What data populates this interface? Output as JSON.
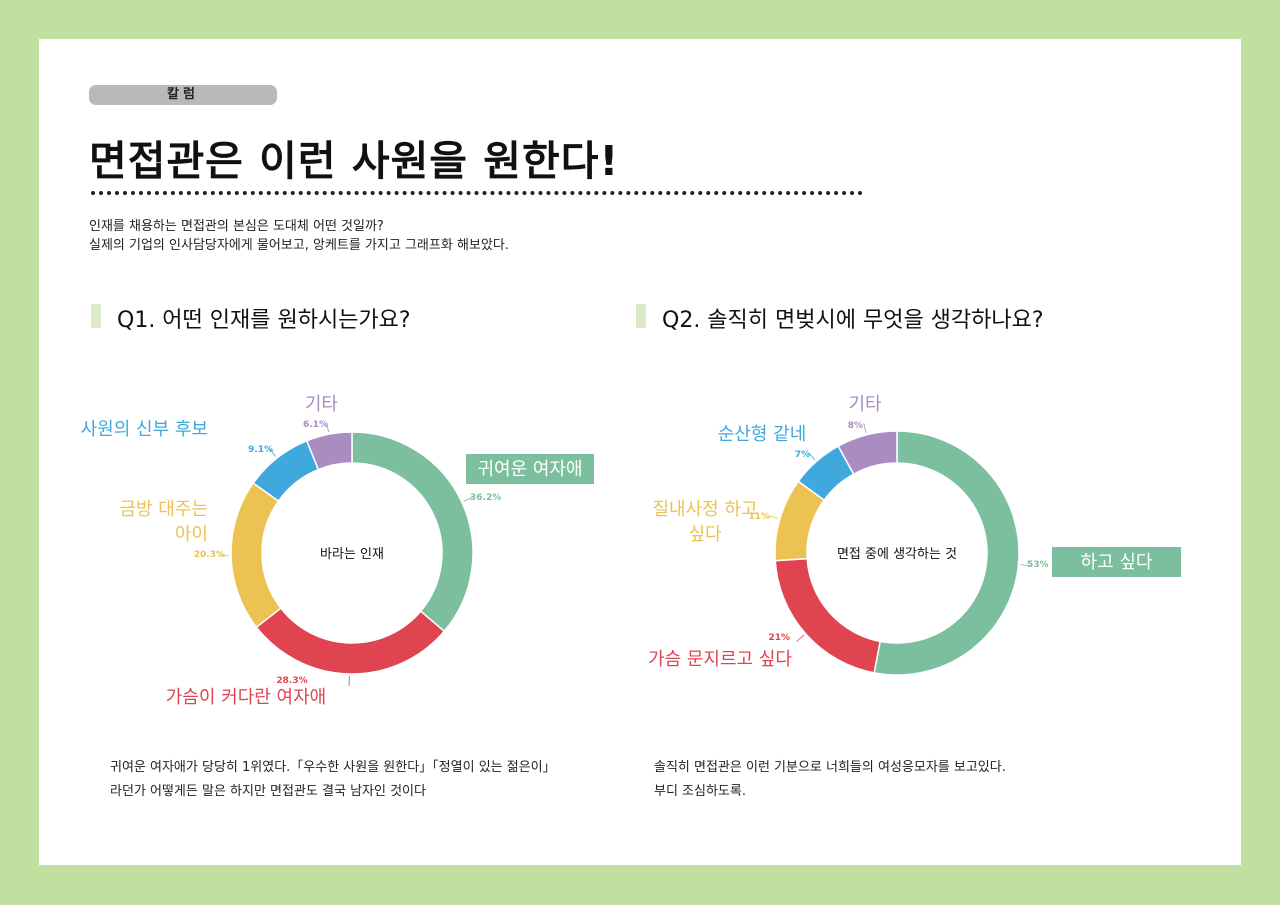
{
  "header": {
    "category": "칼럼",
    "title": "면접관은 이런 사원을 원한다!",
    "intro_line1": "인재를 채용하는 면접관의 본심은 도대체 어떤 것일까?",
    "intro_line2": "실제의 기업의 인사담당자에게 물어보고, 앙케트를 가지고 그래프화 해보았다."
  },
  "q1": {
    "question": "Q1. 어떤 인재를 원하시는가요?",
    "footer_line1": "귀여운 여자애가 당당히 1위였다.「우수한 사원을 원한다」「정열이 있는 젊은이」",
    "footer_line2": "라던가 어떻게든 말은 하지만 면접관도 결국 남자인 것이다"
  },
  "q2": {
    "question": "Q2. 솔직히 면벚시에 무엇을 생각하나요?",
    "footer_line1": "솔직히 면접관은 이런 기분으로 너희들의 여성응모자를 보고있다.",
    "footer_line2": "부디 조심하도록."
  },
  "colors": {
    "green": "#7bbf9e",
    "red": "#e04450",
    "yellow": "#ecc253",
    "blue": "#3fa9de",
    "purple": "#a88cc2"
  },
  "chart_data": [
    {
      "type": "pie",
      "title": "",
      "center_label": "바라는 인재",
      "slices": [
        {
          "label": "귀여운 여자애",
          "pct_label": "36.2%",
          "value": 36.2,
          "color": "#7bbf9e"
        },
        {
          "label": "가슴이 커다란 여자애",
          "pct_label": "28.3%",
          "value": 28.3,
          "color": "#e04450"
        },
        {
          "label": "금방 대주는 아이",
          "pct_label": "20.3%",
          "value": 20.3,
          "color": "#ecc253"
        },
        {
          "label": "사원의 신부 후보",
          "pct_label": "9.1%",
          "value": 9.1,
          "color": "#3fa9de"
        },
        {
          "label": "기타",
          "pct_label": "6.1%",
          "value": 6.1,
          "color": "#a88cc2"
        }
      ]
    },
    {
      "type": "pie",
      "title": "",
      "center_label": "면접 중에 생각하는 것",
      "slices": [
        {
          "label": "하고 싶다",
          "pct_label": "53%",
          "value": 53,
          "color": "#7bbf9e"
        },
        {
          "label": "가슴 문지르고 싶다",
          "pct_label": "21%",
          "value": 21,
          "color": "#e04450"
        },
        {
          "label": "질내사정 하고 싶다",
          "pct_label": "11%",
          "value": 11,
          "color": "#ecc253"
        },
        {
          "label": "순산형 같네",
          "pct_label": "7%",
          "value": 7,
          "color": "#3fa9de"
        },
        {
          "label": "기타",
          "pct_label": "8%",
          "value": 8,
          "color": "#a88cc2"
        }
      ]
    }
  ]
}
